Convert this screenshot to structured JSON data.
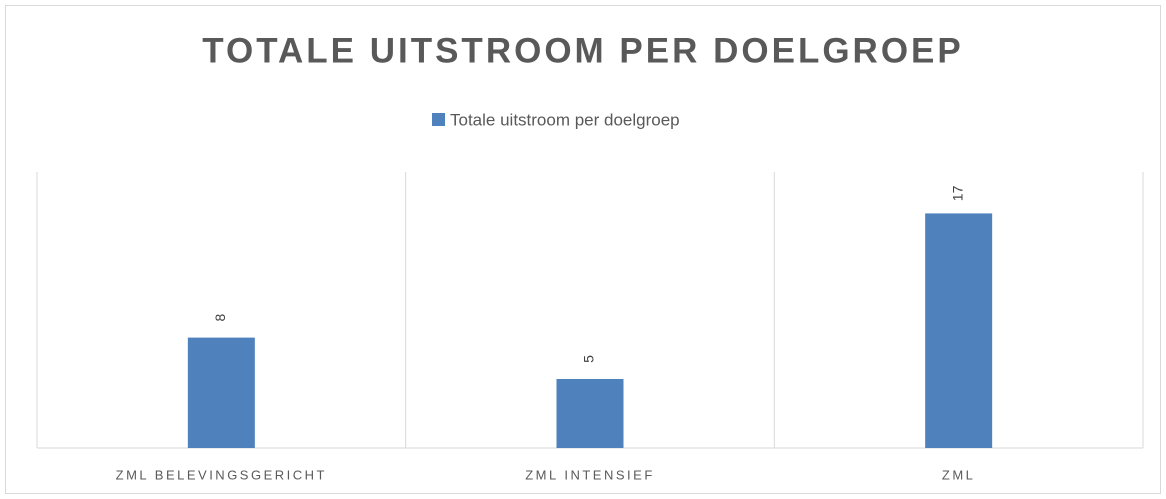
{
  "chart_data": {
    "type": "bar",
    "title": "TOTALE UITSTROOM PER DOELGROEP",
    "categories": [
      "ZML BELEVINGSGERICHT",
      "ZML INTENSIEF",
      "ZML"
    ],
    "series": [
      {
        "name": "Totale uitstroom per doelgroep",
        "color": "#4f81bd",
        "values": [
          8,
          5,
          17
        ]
      }
    ],
    "ylim": [
      0,
      20
    ],
    "legend": "top"
  }
}
